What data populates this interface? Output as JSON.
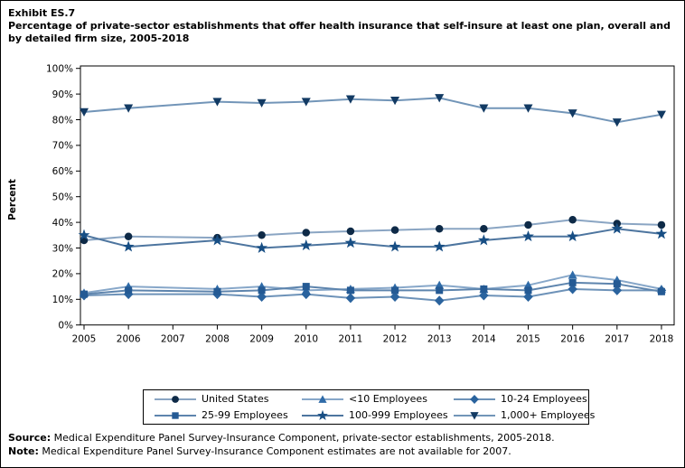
{
  "page": {
    "exhibit_label": "Exhibit ES.7",
    "title": "Percentage of private-sector establishments that offer health insurance that self-insure at least one plan, overall and by detailed firm size, 2005-2018",
    "source_label": "Source:",
    "source_text": " Medical Expenditure Panel Survey-Insurance Component, private-sector establishments, 2005-2018.",
    "note_label": "Note:",
    "note_text": " Medical Expenditure Panel Survey-Insurance Component estimates are not available for 2007."
  },
  "chart_data": {
    "type": "line",
    "title": "Percentage of private-sector establishments that offer health insurance that self-insure at least one plan, overall and by detailed firm size, 2005-2018",
    "xlabel": "",
    "ylabel": "Percent",
    "ylim": [
      0,
      100
    ],
    "ytick_step": 10,
    "ytick_suffix": "%",
    "grid": false,
    "legend_position": "bottom-center-boxed",
    "x": [
      2005,
      2006,
      2007,
      2008,
      2009,
      2010,
      2011,
      2012,
      2013,
      2014,
      2015,
      2016,
      2017,
      2018
    ],
    "missing_data_note": "2007 values are not available; lines connect 2006 directly to 2008",
    "series": [
      {
        "name": "United States",
        "marker": "circle",
        "line_color": "#8aa5c3",
        "marker_color": "#0e2a47",
        "values": [
          33,
          34.5,
          null,
          34,
          35,
          36,
          36.5,
          37,
          37.5,
          37.5,
          39,
          41,
          39.5,
          39
        ]
      },
      {
        "name": "<10 Employees",
        "marker": "triangle-up",
        "line_color": "#87a7c9",
        "marker_color": "#2f6ba8",
        "values": [
          12.5,
          15,
          null,
          14,
          15,
          13.5,
          14,
          14.5,
          15.5,
          14,
          15.5,
          19.5,
          17.5,
          14
        ]
      },
      {
        "name": "10-24 Employees",
        "marker": "diamond",
        "line_color": "#6d92b8",
        "marker_color": "#2a639e",
        "values": [
          11.5,
          12,
          null,
          12,
          11,
          12,
          10.5,
          11,
          9.5,
          11.5,
          11,
          14,
          13.5,
          13.5
        ]
      },
      {
        "name": "25-99 Employees",
        "marker": "square",
        "line_color": "#5d84ad",
        "marker_color": "#245a94",
        "values": [
          12,
          13.5,
          null,
          13,
          13.5,
          15,
          13.5,
          13.5,
          13.5,
          14,
          13.5,
          16.5,
          16,
          13
        ]
      },
      {
        "name": "100-999 Employees",
        "marker": "star",
        "line_color": "#4d759f",
        "marker_color": "#174e84",
        "values": [
          35,
          30.5,
          null,
          33,
          30,
          31,
          32,
          30.5,
          30.5,
          33,
          34.5,
          34.5,
          37.5,
          35.5
        ]
      },
      {
        "name": "1,000+ Employees",
        "marker": "triangle-down",
        "line_color": "#7295b8",
        "marker_color": "#123a63",
        "values": [
          83,
          84.5,
          null,
          87,
          86.5,
          87,
          88,
          87.5,
          88.5,
          84.5,
          84.5,
          82.5,
          79,
          82
        ]
      }
    ]
  }
}
